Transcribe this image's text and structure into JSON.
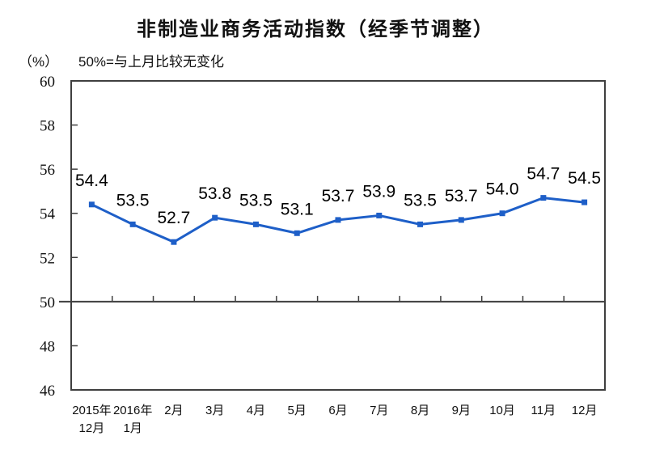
{
  "title": "非制造业商务活动指数（经季节调整）",
  "subtitle": "50%=与上月比较无变化",
  "y_unit_label": "（%）",
  "colors": {
    "line": "#1E5FC8",
    "axis": "#3F3F3F",
    "text": "#111111"
  },
  "chart_data": {
    "type": "line",
    "title": "非制造业商务活动指数（经季节调整）",
    "subtitle": "50%=与上月比较无变化",
    "ylabel": "（%）",
    "x_labels": [
      [
        "2015年",
        "12月"
      ],
      [
        "2016年",
        "1月"
      ],
      [
        "2月"
      ],
      [
        "3月"
      ],
      [
        "4月"
      ],
      [
        "5月"
      ],
      [
        "6月"
      ],
      [
        "7月"
      ],
      [
        "8月"
      ],
      [
        "9月"
      ],
      [
        "10月"
      ],
      [
        "11月"
      ],
      [
        "12月"
      ]
    ],
    "values": [
      54.4,
      53.5,
      52.7,
      53.8,
      53.5,
      53.1,
      53.7,
      53.9,
      53.5,
      53.7,
      54.0,
      54.7,
      54.5
    ],
    "data_labels": [
      "54.4",
      "53.5",
      "52.7",
      "53.8",
      "53.5",
      "53.1",
      "53.7",
      "53.9",
      "53.5",
      "53.7",
      "54.0",
      "54.7",
      "54.5"
    ],
    "y_ticks": [
      46,
      48,
      50,
      52,
      54,
      56,
      58,
      60
    ],
    "ylim": [
      46,
      60
    ],
    "reference_line": 50,
    "grid": false,
    "legend_position": "none",
    "marker": "square"
  }
}
